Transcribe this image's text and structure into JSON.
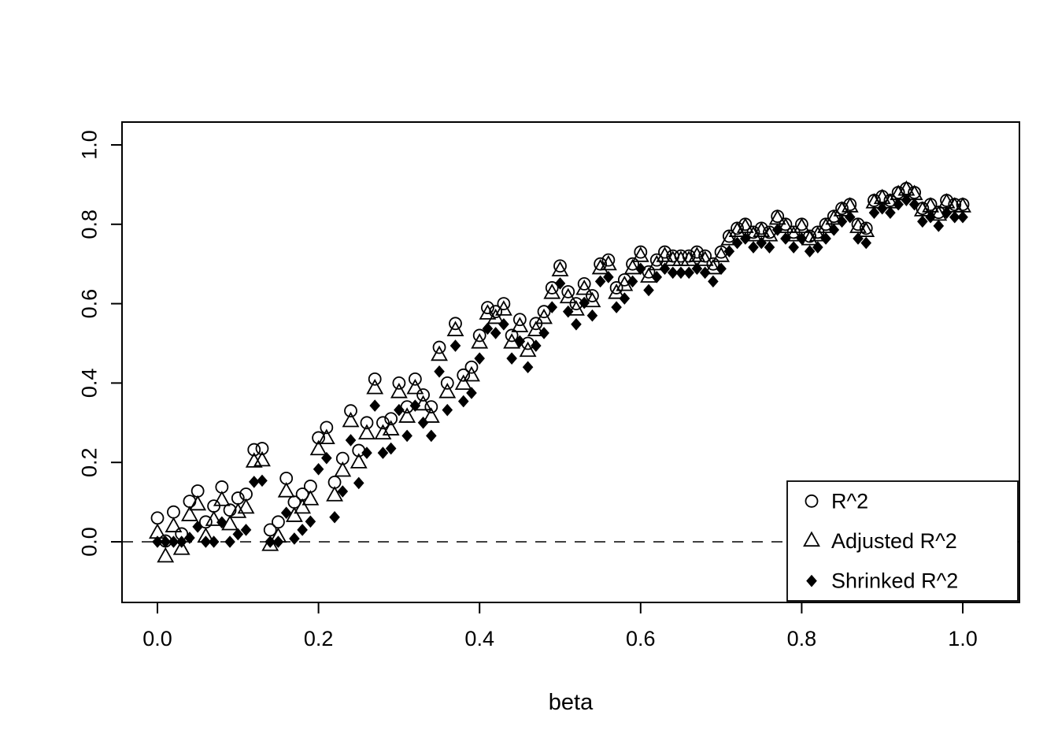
{
  "figure": {
    "background": "#ffffff",
    "ink": "#000000"
  },
  "chart_data": {
    "type": "scatter",
    "title": "",
    "xlabel": "beta",
    "ylabel": "",
    "xlim": [
      0,
      1
    ],
    "ylim": [
      0,
      1
    ],
    "xticks": [
      0,
      0.2,
      0.4,
      0.6,
      0.8,
      1
    ],
    "yticks": [
      0,
      0.2,
      0.4,
      0.6,
      0.8,
      1
    ],
    "grid": false,
    "reference_line": {
      "axis": "y",
      "value": 0,
      "style": "dashed"
    },
    "legend": {
      "position": "bottom-right",
      "entries": [
        "R^2",
        "Adjusted R^2",
        "Shrinked R^2"
      ]
    },
    "x": [
      0,
      0.01,
      0.02,
      0.03,
      0.04,
      0.05,
      0.06,
      0.07,
      0.08,
      0.09,
      0.1,
      0.11,
      0.12,
      0.13,
      0.14,
      0.15,
      0.16,
      0.17,
      0.18,
      0.19,
      0.2,
      0.21,
      0.22,
      0.23,
      0.24,
      0.25,
      0.26,
      0.27,
      0.28,
      0.29,
      0.3,
      0.31,
      0.32,
      0.33,
      0.34,
      0.35,
      0.36,
      0.37,
      0.38,
      0.39,
      0.4,
      0.41,
      0.42,
      0.43,
      0.44,
      0.45,
      0.46,
      0.47,
      0.48,
      0.49,
      0.5,
      0.51,
      0.52,
      0.53,
      0.54,
      0.55,
      0.56,
      0.57,
      0.58,
      0.59,
      0.6,
      0.61,
      0.62,
      0.63,
      0.64,
      0.65,
      0.66,
      0.67,
      0.68,
      0.69,
      0.7,
      0.71,
      0.72,
      0.73,
      0.74,
      0.75,
      0.76,
      0.77,
      0.78,
      0.79,
      0.8,
      0.81,
      0.82,
      0.83,
      0.84,
      0.85,
      0.86,
      0.87,
      0.88,
      0.89,
      0.9,
      0.91,
      0.92,
      0.93,
      0.94,
      0.95,
      0.96,
      0.97,
      0.98,
      0.99,
      1
    ],
    "series": [
      {
        "name": "R^2",
        "marker": "open-circle",
        "values": [
          0.06,
          0.002,
          0.075,
          0.02,
          0.102,
          0.128,
          0.05,
          0.09,
          0.138,
          0.08,
          0.11,
          0.12,
          0.232,
          0.235,
          0.03,
          0.05,
          0.16,
          0.1,
          0.12,
          0.14,
          0.262,
          0.288,
          0.15,
          0.21,
          0.33,
          0.23,
          0.3,
          0.41,
          0.3,
          0.31,
          0.4,
          0.34,
          0.41,
          0.37,
          0.34,
          0.49,
          0.4,
          0.55,
          0.42,
          0.44,
          0.52,
          0.59,
          0.58,
          0.6,
          0.52,
          0.56,
          0.5,
          0.55,
          0.58,
          0.64,
          0.695,
          0.63,
          0.6,
          0.65,
          0.62,
          0.7,
          0.71,
          0.64,
          0.66,
          0.7,
          0.73,
          0.68,
          0.71,
          0.73,
          0.72,
          0.72,
          0.72,
          0.73,
          0.72,
          0.7,
          0.73,
          0.77,
          0.79,
          0.8,
          0.78,
          0.79,
          0.78,
          0.82,
          0.8,
          0.78,
          0.8,
          0.77,
          0.78,
          0.8,
          0.82,
          0.84,
          0.85,
          0.8,
          0.79,
          0.86,
          0.87,
          0.86,
          0.88,
          0.89,
          0.88,
          0.84,
          0.85,
          0.83,
          0.86,
          0.85,
          0.85
        ]
      },
      {
        "name": "Adjusted R^2",
        "marker": "open-triangle",
        "values": [
          0.022,
          -0.038,
          0.038,
          -0.019,
          0.066,
          0.093,
          0.012,
          0.054,
          0.104,
          0.043,
          0.074,
          0.085,
          0.201,
          0.204,
          -0.009,
          0.012,
          0.126,
          0.064,
          0.085,
          0.106,
          0.232,
          0.26,
          0.116,
          0.178,
          0.303,
          0.199,
          0.272,
          0.386,
          0.272,
          0.282,
          0.376,
          0.314,
          0.386,
          0.345,
          0.314,
          0.47,
          0.376,
          0.532,
          0.397,
          0.418,
          0.501,
          0.574,
          0.563,
          0.584,
          0.501,
          0.542,
          0.48,
          0.532,
          0.563,
          0.626,
          0.683,
          0.615,
          0.584,
          0.636,
          0.605,
          0.688,
          0.698,
          0.626,
          0.646,
          0.688,
          0.719,
          0.667,
          0.698,
          0.719,
          0.709,
          0.709,
          0.709,
          0.719,
          0.709,
          0.688,
          0.719,
          0.761,
          0.782,
          0.792,
          0.771,
          0.782,
          0.771,
          0.813,
          0.792,
          0.771,
          0.792,
          0.761,
          0.771,
          0.792,
          0.813,
          0.834,
          0.844,
          0.792,
          0.782,
          0.854,
          0.865,
          0.854,
          0.875,
          0.886,
          0.875,
          0.834,
          0.844,
          0.823,
          0.854,
          0.844,
          0.844
        ]
      },
      {
        "name": "Shrinked R^2",
        "marker": "filled-diamond",
        "values": [
          0,
          0,
          0,
          0,
          0.01,
          0.038,
          0,
          0,
          0.049,
          0,
          0.019,
          0.03,
          0.151,
          0.154,
          0,
          0,
          0.073,
          0.008,
          0.03,
          0.051,
          0.183,
          0.211,
          0.062,
          0.127,
          0.256,
          0.148,
          0.224,
          0.343,
          0.224,
          0.235,
          0.332,
          0.267,
          0.343,
          0.3,
          0.267,
          0.429,
          0.332,
          0.494,
          0.354,
          0.375,
          0.462,
          0.537,
          0.526,
          0.548,
          0.462,
          0.505,
          0.44,
          0.494,
          0.526,
          0.591,
          0.651,
          0.58,
          0.548,
          0.602,
          0.57,
          0.656,
          0.667,
          0.591,
          0.613,
          0.656,
          0.688,
          0.634,
          0.667,
          0.688,
          0.678,
          0.678,
          0.678,
          0.688,
          0.678,
          0.656,
          0.688,
          0.732,
          0.753,
          0.764,
          0.742,
          0.753,
          0.742,
          0.786,
          0.764,
          0.742,
          0.764,
          0.732,
          0.742,
          0.764,
          0.786,
          0.807,
          0.818,
          0.764,
          0.753,
          0.829,
          0.84,
          0.829,
          0.85,
          0.861,
          0.85,
          0.807,
          0.818,
          0.796,
          0.829,
          0.818,
          0.818
        ]
      }
    ]
  }
}
